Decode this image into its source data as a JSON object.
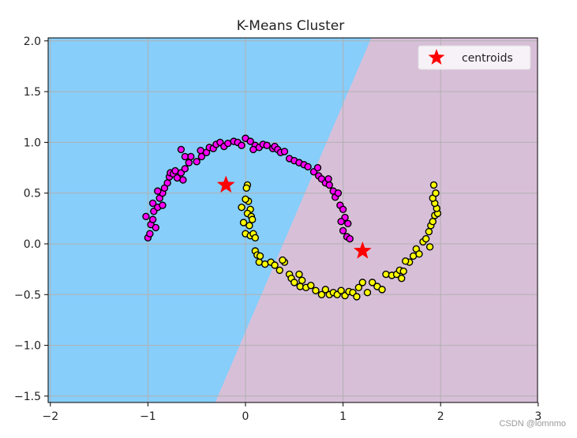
{
  "chart_data": {
    "type": "scatter",
    "title": "K-Means Cluster",
    "xlabel": "",
    "ylabel": "",
    "xlim": [
      -2,
      3
    ],
    "ylim": [
      -1.55,
      2.02
    ],
    "x_ticks": [
      -2,
      -1,
      0,
      1,
      2,
      3
    ],
    "x_tick_labels": [
      "−2",
      "−1",
      "0",
      "1",
      "2",
      "3"
    ],
    "y_ticks": [
      2.0,
      1.5,
      1.0,
      0.5,
      0.0,
      -0.5,
      -1.0,
      -1.5
    ],
    "y_tick_labels": [
      "2.0",
      "1.5",
      "1.0",
      "0.5",
      "0.0",
      "−0.5",
      "−1.0",
      "−1.5"
    ],
    "grid": true,
    "legend": {
      "position": "upper right",
      "entries": [
        {
          "label": "centroids",
          "marker": "star",
          "color": "#ff0000"
        }
      ]
    },
    "regions": [
      {
        "cluster": 0,
        "color": "#87cefa"
      },
      {
        "cluster": 1,
        "color": "#d8bfd8"
      }
    ],
    "decision_boundary": {
      "x_top": 1.29,
      "y_top": 2.02,
      "x_bottom": -0.31,
      "y_bottom": -1.55
    },
    "centroids": [
      {
        "x": -0.2,
        "y": 0.58
      },
      {
        "x": 1.2,
        "y": -0.07
      }
    ],
    "series": [
      {
        "name": "cluster-magenta",
        "color": "#ff00ff",
        "points": [
          [
            -1.0,
            0.06
          ],
          [
            -0.98,
            0.1
          ],
          [
            -1.02,
            0.27
          ],
          [
            -0.97,
            0.19
          ],
          [
            -0.95,
            0.24
          ],
          [
            -0.92,
            0.16
          ],
          [
            -0.94,
            0.32
          ],
          [
            -0.9,
            0.36
          ],
          [
            -0.85,
            0.38
          ],
          [
            -0.88,
            0.45
          ],
          [
            -0.85,
            0.5
          ],
          [
            -0.83,
            0.55
          ],
          [
            -0.8,
            0.6
          ],
          [
            -0.78,
            0.66
          ],
          [
            -0.77,
            0.7
          ],
          [
            -0.74,
            0.69
          ],
          [
            -0.64,
            0.63
          ],
          [
            -0.66,
            0.7
          ],
          [
            -0.62,
            0.74
          ],
          [
            -0.58,
            0.8
          ],
          [
            -0.56,
            0.86
          ],
          [
            -0.62,
            0.86
          ],
          [
            -0.66,
            0.93
          ],
          [
            -0.5,
            0.81
          ],
          [
            -0.45,
            0.86
          ],
          [
            -0.4,
            0.9
          ],
          [
            -0.37,
            0.95
          ],
          [
            -0.33,
            0.94
          ],
          [
            -0.3,
            0.98
          ],
          [
            -0.26,
            1.0
          ],
          [
            -0.22,
            0.96
          ],
          [
            -0.18,
            0.99
          ],
          [
            -0.12,
            1.01
          ],
          [
            -0.08,
            1.0
          ],
          [
            -0.04,
            0.97
          ],
          [
            0.0,
            1.04
          ],
          [
            0.05,
            1.01
          ],
          [
            0.1,
            0.97
          ],
          [
            0.14,
            0.95
          ],
          [
            0.18,
            0.98
          ],
          [
            0.22,
            0.97
          ],
          [
            0.28,
            0.94
          ],
          [
            0.3,
            0.96
          ],
          [
            0.33,
            0.93
          ],
          [
            0.36,
            0.9
          ],
          [
            0.4,
            0.91
          ],
          [
            0.45,
            0.84
          ],
          [
            0.5,
            0.82
          ],
          [
            0.55,
            0.8
          ],
          [
            0.6,
            0.78
          ],
          [
            0.64,
            0.76
          ],
          [
            0.7,
            0.71
          ],
          [
            0.75,
            0.67
          ],
          [
            0.78,
            0.64
          ],
          [
            0.82,
            0.6
          ],
          [
            0.86,
            0.58
          ],
          [
            0.9,
            0.52
          ],
          [
            0.92,
            0.46
          ],
          [
            0.95,
            0.5
          ],
          [
            0.97,
            0.38
          ],
          [
            1.0,
            0.34
          ],
          [
            1.02,
            0.26
          ],
          [
            1.05,
            0.2
          ],
          [
            1.0,
            0.13
          ],
          [
            0.98,
            0.22
          ],
          [
            1.04,
            0.07
          ],
          [
            1.07,
            0.05
          ],
          [
            0.85,
            0.64
          ],
          [
            0.74,
            0.75
          ],
          [
            0.08,
            0.93
          ],
          [
            -0.46,
            0.92
          ],
          [
            -0.72,
            0.72
          ],
          [
            -0.9,
            0.52
          ],
          [
            -0.95,
            0.4
          ],
          [
            -0.7,
            0.65
          ]
        ]
      },
      {
        "name": "cluster-yellow",
        "color": "#ffff00",
        "points": [
          [
            0.02,
            0.58
          ],
          [
            0.01,
            0.55
          ],
          [
            0.03,
            0.42
          ],
          [
            0.05,
            0.34
          ],
          [
            -0.04,
            0.36
          ],
          [
            0.02,
            0.3
          ],
          [
            0.06,
            0.27
          ],
          [
            -0.02,
            0.21
          ],
          [
            0.04,
            0.18
          ],
          [
            0.0,
            0.1
          ],
          [
            0.05,
            0.08
          ],
          [
            0.08,
            0.1
          ],
          [
            0.1,
            0.06
          ],
          [
            0.1,
            -0.07
          ],
          [
            0.12,
            -0.11
          ],
          [
            0.14,
            -0.18
          ],
          [
            0.2,
            -0.2
          ],
          [
            0.26,
            -0.18
          ],
          [
            0.3,
            -0.21
          ],
          [
            0.35,
            -0.26
          ],
          [
            0.4,
            -0.18
          ],
          [
            0.45,
            -0.3
          ],
          [
            0.47,
            -0.34
          ],
          [
            0.5,
            -0.38
          ],
          [
            0.55,
            -0.3
          ],
          [
            0.56,
            -0.42
          ],
          [
            0.62,
            -0.43
          ],
          [
            0.67,
            -0.41
          ],
          [
            0.72,
            -0.46
          ],
          [
            0.78,
            -0.5
          ],
          [
            0.82,
            -0.45
          ],
          [
            0.86,
            -0.5
          ],
          [
            0.9,
            -0.48
          ],
          [
            0.94,
            -0.5
          ],
          [
            0.98,
            -0.46
          ],
          [
            1.02,
            -0.51
          ],
          [
            1.06,
            -0.47
          ],
          [
            1.1,
            -0.48
          ],
          [
            1.14,
            -0.52
          ],
          [
            1.2,
            -0.38
          ],
          [
            1.25,
            -0.48
          ],
          [
            1.3,
            -0.38
          ],
          [
            1.35,
            -0.42
          ],
          [
            1.4,
            -0.45
          ],
          [
            1.44,
            -0.3
          ],
          [
            1.5,
            -0.31
          ],
          [
            1.55,
            -0.3
          ],
          [
            1.58,
            -0.26
          ],
          [
            1.6,
            -0.34
          ],
          [
            1.62,
            -0.27
          ],
          [
            1.68,
            -0.18
          ],
          [
            1.72,
            -0.12
          ],
          [
            1.75,
            -0.05
          ],
          [
            1.78,
            -0.1
          ],
          [
            1.82,
            0.02
          ],
          [
            1.85,
            0.05
          ],
          [
            1.88,
            0.12
          ],
          [
            1.9,
            0.18
          ],
          [
            1.92,
            0.22
          ],
          [
            1.94,
            0.28
          ],
          [
            1.97,
            0.3
          ],
          [
            1.96,
            0.35
          ],
          [
            1.94,
            0.4
          ],
          [
            1.92,
            0.45
          ],
          [
            1.95,
            0.5
          ],
          [
            1.93,
            0.58
          ],
          [
            1.89,
            -0.03
          ],
          [
            0.58,
            -0.36
          ],
          [
            0.38,
            -0.16
          ],
          [
            0.15,
            -0.12
          ],
          [
            1.16,
            -0.43
          ],
          [
            1.64,
            -0.17
          ],
          [
            0.07,
            0.24
          ],
          [
            0.0,
            0.44
          ]
        ]
      }
    ]
  },
  "watermark": "CSDN @lomnmo"
}
